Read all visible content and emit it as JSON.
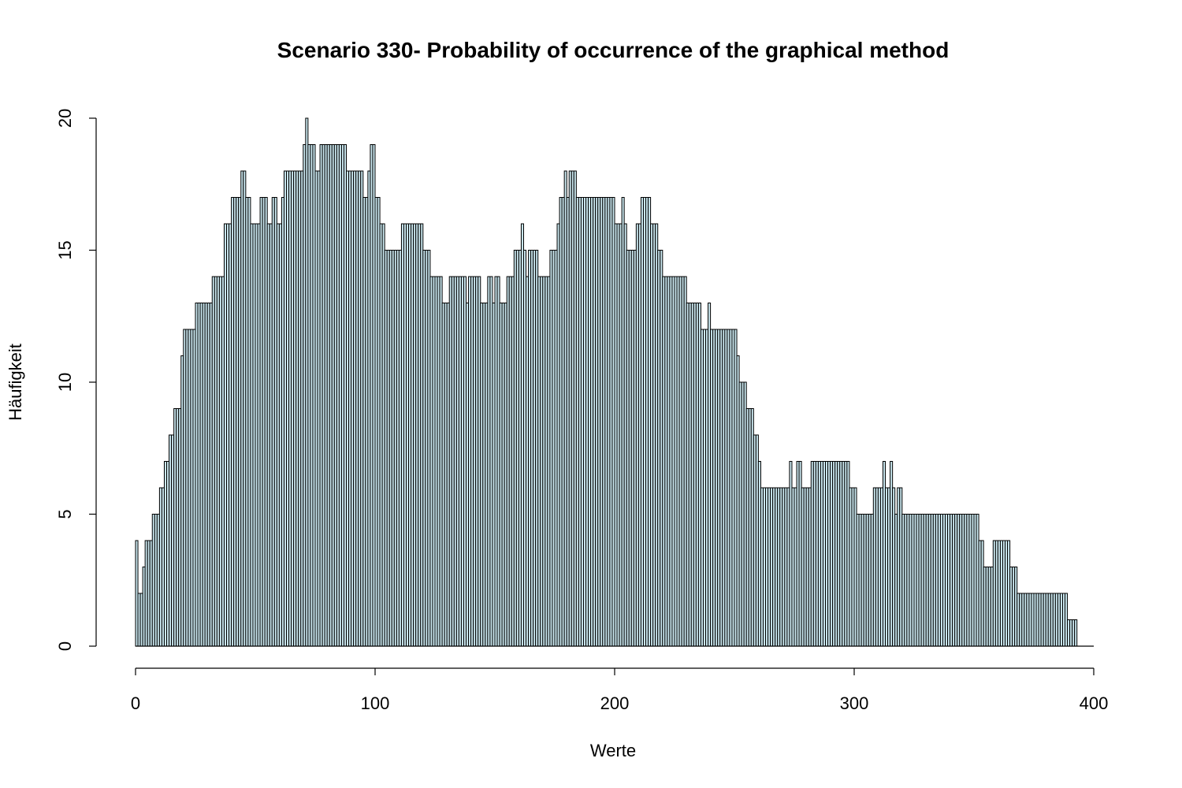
{
  "chart_data": {
    "type": "bar",
    "title": "Scenario 330- Probability of occurrence of the graphical method",
    "xlabel": "Werte",
    "ylabel": "Häufigkeit",
    "xlim": [
      0,
      400
    ],
    "ylim": [
      0,
      20
    ],
    "xticks": [
      0,
      100,
      200,
      300,
      400
    ],
    "yticks": [
      0,
      5,
      10,
      15,
      20
    ],
    "bin_start": 0,
    "bin_width": 1,
    "bar_color": "#c9e6ee",
    "values": [
      4,
      2,
      2,
      3,
      4,
      4,
      4,
      5,
      5,
      5,
      6,
      6,
      7,
      7,
      8,
      8,
      9,
      9,
      9,
      11,
      12,
      12,
      12,
      12,
      12,
      13,
      13,
      13,
      13,
      13,
      13,
      13,
      14,
      14,
      14,
      14,
      14,
      16,
      16,
      16,
      17,
      17,
      17,
      17,
      18,
      18,
      17,
      17,
      16,
      16,
      16,
      16,
      17,
      17,
      17,
      16,
      16,
      17,
      17,
      16,
      16,
      17,
      18,
      18,
      18,
      18,
      18,
      18,
      18,
      18,
      19,
      20,
      19,
      19,
      19,
      18,
      18,
      19,
      19,
      19,
      19,
      19,
      19,
      19,
      19,
      19,
      19,
      19,
      18,
      18,
      18,
      18,
      18,
      18,
      18,
      17,
      17,
      18,
      19,
      19,
      17,
      17,
      16,
      16,
      15,
      15,
      15,
      15,
      15,
      15,
      15,
      16,
      16,
      16,
      16,
      16,
      16,
      16,
      16,
      16,
      15,
      15,
      15,
      14,
      14,
      14,
      14,
      14,
      13,
      13,
      13,
      14,
      14,
      14,
      14,
      14,
      14,
      14,
      13,
      14,
      14,
      14,
      14,
      14,
      13,
      13,
      13,
      14,
      14,
      13,
      14,
      14,
      13,
      13,
      13,
      14,
      14,
      14,
      15,
      15,
      15,
      16,
      15,
      14,
      15,
      15,
      15,
      15,
      14,
      14,
      14,
      14,
      14,
      15,
      15,
      15,
      16,
      17,
      17,
      18,
      17,
      18,
      18,
      18,
      17,
      17,
      17,
      17,
      17,
      17,
      17,
      17,
      17,
      17,
      17,
      17,
      17,
      17,
      17,
      17,
      16,
      16,
      16,
      17,
      16,
      15,
      15,
      15,
      15,
      16,
      16,
      17,
      17,
      17,
      17,
      16,
      16,
      16,
      15,
      15,
      14,
      14,
      14,
      14,
      14,
      14,
      14,
      14,
      14,
      14,
      13,
      13,
      13,
      13,
      13,
      13,
      12,
      12,
      12,
      13,
      12,
      12,
      12,
      12,
      12,
      12,
      12,
      12,
      12,
      12,
      12,
      11,
      10,
      10,
      10,
      9,
      9,
      9,
      8,
      8,
      7,
      6,
      6,
      6,
      6,
      6,
      6,
      6,
      6,
      6,
      6,
      6,
      6,
      7,
      6,
      6,
      7,
      7,
      6,
      6,
      6,
      6,
      7,
      7,
      7,
      7,
      7,
      7,
      7,
      7,
      7,
      7,
      7,
      7,
      7,
      7,
      7,
      7,
      6,
      6,
      6,
      5,
      5,
      5,
      5,
      5,
      5,
      5,
      6,
      6,
      6,
      6,
      7,
      6,
      6,
      7,
      6,
      5,
      6,
      6,
      5,
      5,
      5,
      5,
      5,
      5,
      5,
      5,
      5,
      5,
      5,
      5,
      5,
      5,
      5,
      5,
      5,
      5,
      5,
      5,
      5,
      5,
      5,
      5,
      5,
      5,
      5,
      5,
      5,
      5,
      5,
      5,
      4,
      4,
      3,
      3,
      3,
      3,
      4,
      4,
      4,
      4,
      4,
      4,
      4,
      3,
      3,
      3,
      2,
      2,
      2,
      2,
      2,
      2,
      2,
      2,
      2,
      2,
      2,
      2,
      2,
      2,
      2,
      2,
      2,
      2,
      2,
      2,
      2,
      1,
      1,
      1,
      1
    ]
  }
}
